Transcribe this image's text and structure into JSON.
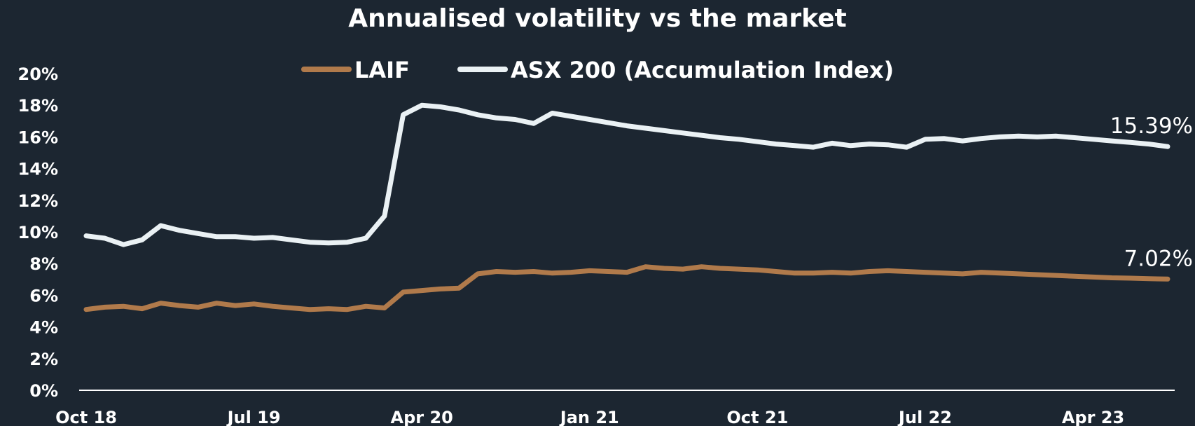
{
  "chart_data": {
    "type": "line",
    "title": "Annualised volatility vs the market",
    "xlabel": "",
    "ylabel": "",
    "y_unit": "%",
    "ylim": [
      0,
      20
    ],
    "y_ticks": [
      "0%",
      "2%",
      "4%",
      "6%",
      "8%",
      "10%",
      "12%",
      "14%",
      "16%",
      "18%",
      "20%"
    ],
    "x_ticks": [
      "Oct 18",
      "Jul 19",
      "Apr 20",
      "Jan 21",
      "Oct 21",
      "Jul 22",
      "Apr 23"
    ],
    "grid": false,
    "legend_position": "top-center",
    "x": [
      "Oct 18",
      "Nov 18",
      "Dec 18",
      "Jan 19",
      "Feb 19",
      "Mar 19",
      "Apr 19",
      "May 19",
      "Jun 19",
      "Jul 19",
      "Aug 19",
      "Sep 19",
      "Oct 19",
      "Nov 19",
      "Dec 19",
      "Jan 20",
      "Feb 20",
      "Mar 20",
      "Apr 20",
      "May 20",
      "Jun 20",
      "Jul 20",
      "Aug 20",
      "Sep 20",
      "Oct 20",
      "Nov 20",
      "Dec 20",
      "Jan 21",
      "Feb 21",
      "Mar 21",
      "Apr 21",
      "May 21",
      "Jun 21",
      "Jul 21",
      "Aug 21",
      "Sep 21",
      "Oct 21",
      "Nov 21",
      "Dec 21",
      "Jan 22",
      "Feb 22",
      "Mar 22",
      "Apr 22",
      "May 22",
      "Jun 22",
      "Jul 22",
      "Aug 22",
      "Sep 22",
      "Oct 22",
      "Nov 22",
      "Dec 22",
      "Jan 23",
      "Feb 23",
      "Mar 23",
      "Apr 23",
      "May 23",
      "Jun 23",
      "Jul 23",
      "Aug 23"
    ],
    "series": [
      {
        "name": "LAIF",
        "color": "#b07a4b",
        "end_label": "7.02%",
        "values": [
          5.1,
          5.25,
          5.3,
          5.15,
          5.5,
          5.35,
          5.25,
          5.5,
          5.35,
          5.45,
          5.3,
          5.2,
          5.1,
          5.15,
          5.1,
          5.3,
          5.2,
          6.2,
          6.3,
          6.4,
          6.45,
          7.35,
          7.5,
          7.45,
          7.5,
          7.4,
          7.45,
          7.55,
          7.5,
          7.45,
          7.8,
          7.7,
          7.65,
          7.8,
          7.7,
          7.65,
          7.6,
          7.5,
          7.4,
          7.4,
          7.45,
          7.4,
          7.5,
          7.55,
          7.5,
          7.45,
          7.4,
          7.35,
          7.45,
          7.4,
          7.35,
          7.3,
          7.25,
          7.2,
          7.15,
          7.1,
          7.08,
          7.05,
          7.02
        ]
      },
      {
        "name": "ASX 200 (Accumulation Index)",
        "color": "#eaf1f4",
        "end_label": "15.39%",
        "values": [
          9.75,
          9.6,
          9.2,
          9.5,
          10.4,
          10.1,
          9.9,
          9.7,
          9.7,
          9.6,
          9.65,
          9.5,
          9.35,
          9.3,
          9.35,
          9.6,
          11.0,
          17.4,
          18.0,
          17.9,
          17.7,
          17.4,
          17.2,
          17.1,
          16.85,
          17.5,
          17.3,
          17.1,
          16.9,
          16.7,
          16.55,
          16.4,
          16.25,
          16.1,
          15.95,
          15.85,
          15.7,
          15.55,
          15.45,
          15.35,
          15.6,
          15.45,
          15.55,
          15.5,
          15.35,
          15.85,
          15.9,
          15.75,
          15.9,
          16.0,
          16.05,
          16.0,
          16.05,
          15.95,
          15.85,
          15.75,
          15.65,
          15.55,
          15.39
        ]
      }
    ]
  }
}
